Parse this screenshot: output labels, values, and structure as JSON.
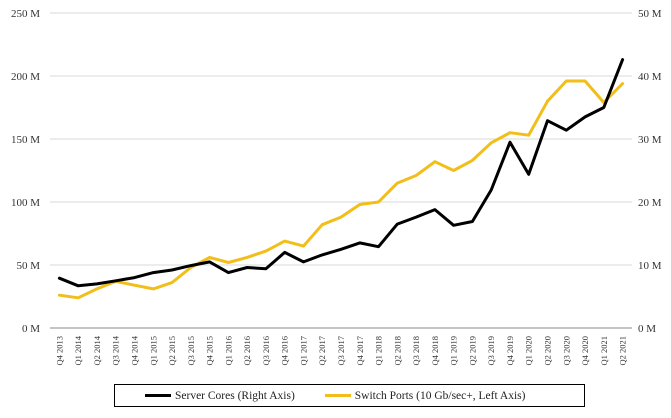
{
  "chart_data": {
    "type": "line",
    "x": [
      "Q4 2013",
      "Q1 2014",
      "Q2 2014",
      "Q3 2014",
      "Q4 2014",
      "Q1 2015",
      "Q2 2015",
      "Q3 2015",
      "Q4 2015",
      "Q1 2016",
      "Q2 2016",
      "Q3 2016",
      "Q4 2016",
      "Q1 2017",
      "Q2 2017",
      "Q3 2017",
      "Q4 2017",
      "Q1 2018",
      "Q2 2018",
      "Q3 2018",
      "Q4 2018",
      "Q1 2019",
      "Q2 2019",
      "Q3 2019",
      "Q4 2019",
      "Q1 2020",
      "Q2 2020",
      "Q3 2020",
      "Q4 2020",
      "Q1 2021",
      "Q2 2021"
    ],
    "left_axis": {
      "ylim": [
        0,
        250
      ],
      "ticks": [
        "0 M",
        "50 M",
        "100 M",
        "150 M",
        "200 M",
        "250 M"
      ],
      "tick_values": [
        0,
        50,
        100,
        150,
        200,
        250
      ]
    },
    "right_axis": {
      "ylim": [
        0,
        50
      ],
      "ticks": [
        "0 M",
        "10 M",
        "20 M",
        "30 M",
        "40 M",
        "50 M"
      ],
      "tick_values": [
        0,
        10,
        20,
        30,
        40,
        50
      ]
    },
    "series": [
      {
        "name": "Server Cores (Right Axis)",
        "axis": "right",
        "color": "#000000",
        "values": [
          7.9,
          6.7,
          7.0,
          7.5,
          8.0,
          8.8,
          9.2,
          9.9,
          10.5,
          8.8,
          9.6,
          9.4,
          12.0,
          10.5,
          11.6,
          12.5,
          13.5,
          12.9,
          16.5,
          17.6,
          18.8,
          16.3,
          16.9,
          21.9,
          29.5,
          24.4,
          32.9,
          31.4,
          33.5,
          35.0,
          42.6
        ]
      },
      {
        "name": "Switch Ports (10 Gb/sec+, Left Axis)",
        "axis": "left",
        "color": "#F2BE1A",
        "values": [
          26,
          24,
          31,
          37,
          34,
          31,
          36,
          48,
          56,
          52,
          56,
          61,
          69,
          65,
          82,
          88,
          98,
          100,
          115,
          121,
          132,
          125,
          133,
          147,
          155,
          153,
          180,
          196,
          196,
          179,
          194
        ]
      }
    ],
    "legend_position": "bottom",
    "grid": "horizontal"
  }
}
